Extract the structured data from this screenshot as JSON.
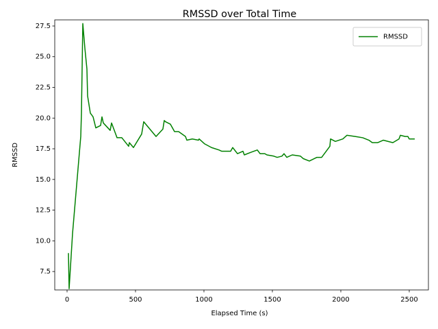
{
  "chart_data": {
    "type": "line",
    "title": "RMSSD over Total Time",
    "x_label": "Elapsed Time (s)",
    "y_label": "RMSSD",
    "xlim": [
      -90,
      2640
    ],
    "ylim": [
      6.0,
      28.0
    ],
    "xticks": [
      0,
      500,
      1000,
      1500,
      2000,
      2500
    ],
    "yticks": [
      7.5,
      {
        "value": 10,
        "label": "10.0"
      },
      12.5,
      {
        "value": 15,
        "label": "15.0"
      },
      17.5,
      {
        "value": 20,
        "label": "20.0"
      },
      22.5,
      {
        "value": 25,
        "label": "25.0"
      },
      27.5
    ],
    "legend": "upper right",
    "series": [
      {
        "name": "RMSSD",
        "color": "#008000",
        "x": [
          10,
          15,
          40,
          100,
          105,
          115,
          130,
          145,
          150,
          170,
          190,
          210,
          245,
          255,
          265,
          315,
          325,
          355,
          365,
          400,
          450,
          455,
          485,
          545,
          560,
          650,
          700,
          710,
          720,
          755,
          785,
          815,
          865,
          875,
          915,
          960,
          965,
          1005,
          1055,
          1110,
          1130,
          1160,
          1195,
          1210,
          1245,
          1285,
          1295,
          1340,
          1390,
          1410,
          1445,
          1460,
          1510,
          1535,
          1570,
          1585,
          1605,
          1645,
          1705,
          1725,
          1770,
          1825,
          1860,
          1920,
          1925,
          1960,
          2015,
          2045,
          2105,
          2160,
          2205,
          2230,
          2270,
          2310,
          2380,
          2425,
          2435,
          2470,
          2490,
          2500,
          2540
        ],
        "values": [
          9.0,
          6.1,
          10.6,
          18.5,
          20.4,
          27.7,
          25.7,
          24.0,
          21.8,
          20.4,
          20.1,
          19.2,
          19.4,
          20.1,
          19.6,
          19.0,
          19.6,
          18.7,
          18.4,
          18.4,
          17.7,
          18.0,
          17.6,
          18.7,
          19.7,
          18.5,
          19.1,
          19.8,
          19.7,
          19.5,
          18.9,
          18.9,
          18.5,
          18.2,
          18.3,
          18.2,
          18.3,
          17.9,
          17.6,
          17.4,
          17.3,
          17.3,
          17.3,
          17.6,
          17.1,
          17.3,
          17.0,
          17.2,
          17.4,
          17.1,
          17.1,
          17.0,
          16.9,
          16.8,
          16.9,
          17.1,
          16.8,
          17.0,
          16.9,
          16.7,
          16.5,
          16.8,
          16.8,
          17.7,
          18.3,
          18.1,
          18.3,
          18.6,
          18.5,
          18.4,
          18.2,
          18.0,
          18.0,
          18.2,
          18.0,
          18.3,
          18.6,
          18.5,
          18.5,
          18.3,
          18.3
        ]
      }
    ]
  }
}
